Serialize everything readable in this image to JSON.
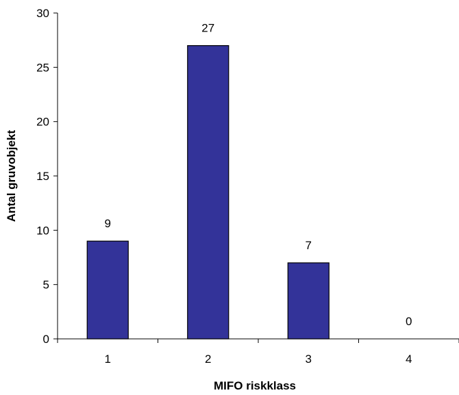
{
  "chart_data": {
    "type": "bar",
    "categories": [
      "1",
      "2",
      "3",
      "4"
    ],
    "values": [
      9,
      27,
      7,
      0
    ],
    "data_labels": [
      "9",
      "27",
      "7",
      "0"
    ],
    "xlabel": "MIFO riskklass",
    "ylabel": "Antal gruvobjekt",
    "ylim": [
      0,
      30
    ],
    "yticks": [
      0,
      5,
      10,
      15,
      20,
      25,
      30
    ],
    "ytick_labels": [
      "0",
      "5",
      "10",
      "15",
      "20",
      "25",
      "30"
    ],
    "grid": false,
    "legend": "none",
    "bar_color": "#333399",
    "bar_edge_color": "#000000"
  }
}
